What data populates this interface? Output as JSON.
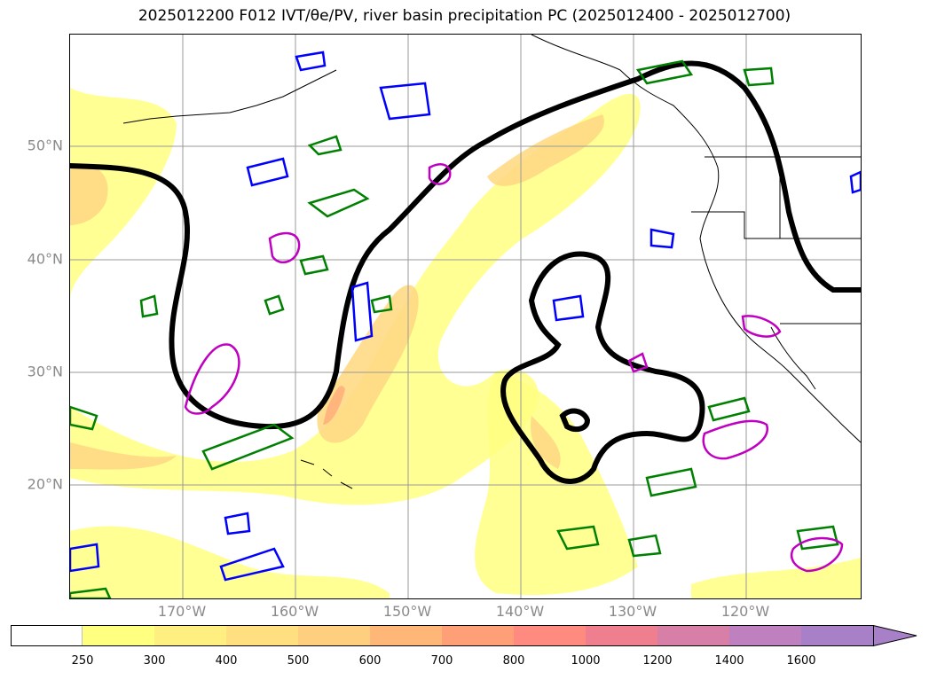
{
  "title": "2025012200 F012 IVT/θe/PV, river basin precipitation PC (2025012400 - 2025012700)",
  "map": {
    "lat_labels": [
      {
        "id": "lat-50",
        "text": "50°N"
      },
      {
        "id": "lat-40",
        "text": "40°N"
      },
      {
        "id": "lat-30",
        "text": "30°N"
      },
      {
        "id": "lat-20",
        "text": "20°N"
      }
    ],
    "lon_labels": [
      {
        "id": "lon-170",
        "text": "170°W"
      },
      {
        "id": "lon-160",
        "text": "160°W"
      },
      {
        "id": "lon-150",
        "text": "150°W"
      },
      {
        "id": "lon-140",
        "text": "140°W"
      },
      {
        "id": "lon-130",
        "text": "130°W"
      },
      {
        "id": "lon-120",
        "text": "120°W"
      }
    ],
    "colors": {
      "ivt_fill_light": "#ffff80",
      "ivt_fill_mid": "#ffd985",
      "ivt_fill_dark": "#ffb07a",
      "theta_e_contour": "#000000",
      "pv_green": "#008000",
      "pv_blue": "#0000ff",
      "pv_magenta": "#c000c0",
      "gridlines": "#9a9a9a",
      "label_gray": "#8a8a8a"
    }
  },
  "colorbar": {
    "ticks": [
      "250",
      "300",
      "400",
      "500",
      "600",
      "700",
      "800",
      "1000",
      "1200",
      "1400",
      "1600"
    ],
    "colors": [
      "#ffffff",
      "#ffff80",
      "#ffef80",
      "#ffdf80",
      "#ffcf80",
      "#ffb778",
      "#ff9f78",
      "#ff8a80",
      "#ef7f8f",
      "#d87fa8",
      "#bf80c0",
      "#a880c8"
    ]
  }
}
